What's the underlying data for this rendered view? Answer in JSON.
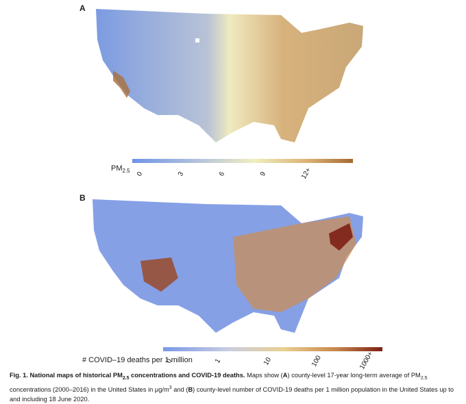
{
  "panels": [
    {
      "label": "A",
      "legend": {
        "title_main": "PM",
        "title_sub": "2.5",
        "ticks": [
          "0",
          "3",
          "6",
          "9",
          "12+"
        ],
        "colors": [
          "#6f94e6",
          "#b5c3dd",
          "#f0eec0",
          "#d9b073",
          "#a46a33"
        ]
      }
    },
    {
      "label": "B",
      "legend": {
        "title": "# COVID–19 deaths per 1 million",
        "ticks": [
          "0",
          "1",
          "10",
          "100",
          "1000+"
        ],
        "colors": [
          "#7a98e8",
          "#c9cde0",
          "#e9cf91",
          "#c98a4d",
          "#7e2016"
        ]
      }
    }
  ],
  "caption": {
    "fig": "Fig. 1.",
    "title_pre": "National maps of historical PM",
    "title_sub": "2.5",
    "title_post": " concentrations and COVID-19 deaths.",
    "text1": " Maps show (",
    "a": "A",
    "text2": ") county-level 17-year long-term average of PM",
    "sub2": "2.5",
    "text3": " concentrations (2000–2016) in the United States in μg/m",
    "sup": "3",
    "text4": " and (",
    "b": "B",
    "text5": ") county-level number of COVID-19 deaths per 1 million population in the United States up to and including 18 June 2020."
  }
}
